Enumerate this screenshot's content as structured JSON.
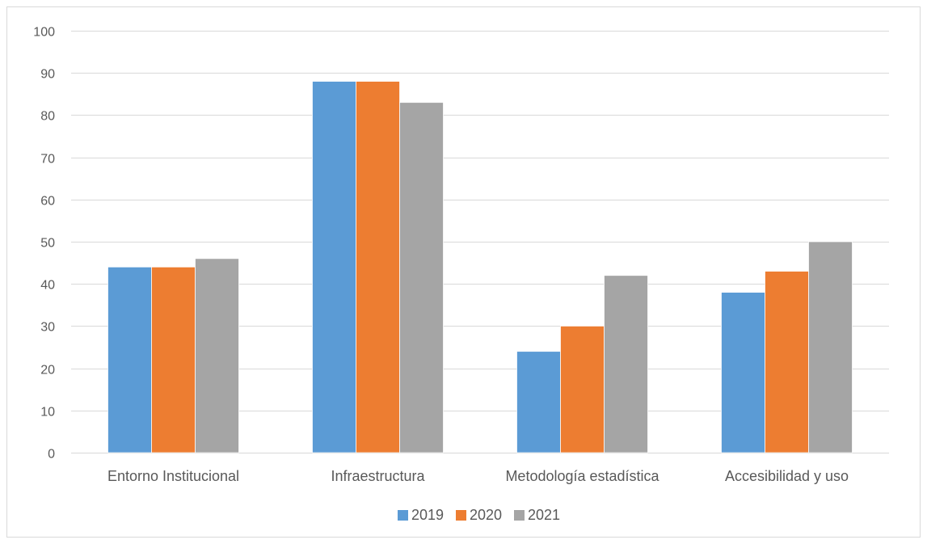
{
  "chart_data": {
    "type": "bar",
    "title": "",
    "xlabel": "",
    "ylabel": "",
    "categories": [
      "Entorno Institucional",
      "Infraestructura",
      "Metodología estadística",
      "Accesibilidad y uso"
    ],
    "series": [
      {
        "name": "2019",
        "color": "#5b9bd5",
        "values": [
          44,
          88,
          24,
          38
        ]
      },
      {
        "name": "2020",
        "color": "#ed7d31",
        "values": [
          44,
          88,
          30,
          43
        ]
      },
      {
        "name": "2021",
        "color": "#a5a5a5",
        "values": [
          46,
          83,
          42,
          50
        ]
      }
    ],
    "ylim": [
      0,
      100
    ],
    "yticks": [
      "0",
      "10",
      "20",
      "30",
      "40",
      "50",
      "60",
      "70",
      "80",
      "90",
      "100"
    ],
    "grid": true,
    "legend_position": "bottom"
  }
}
